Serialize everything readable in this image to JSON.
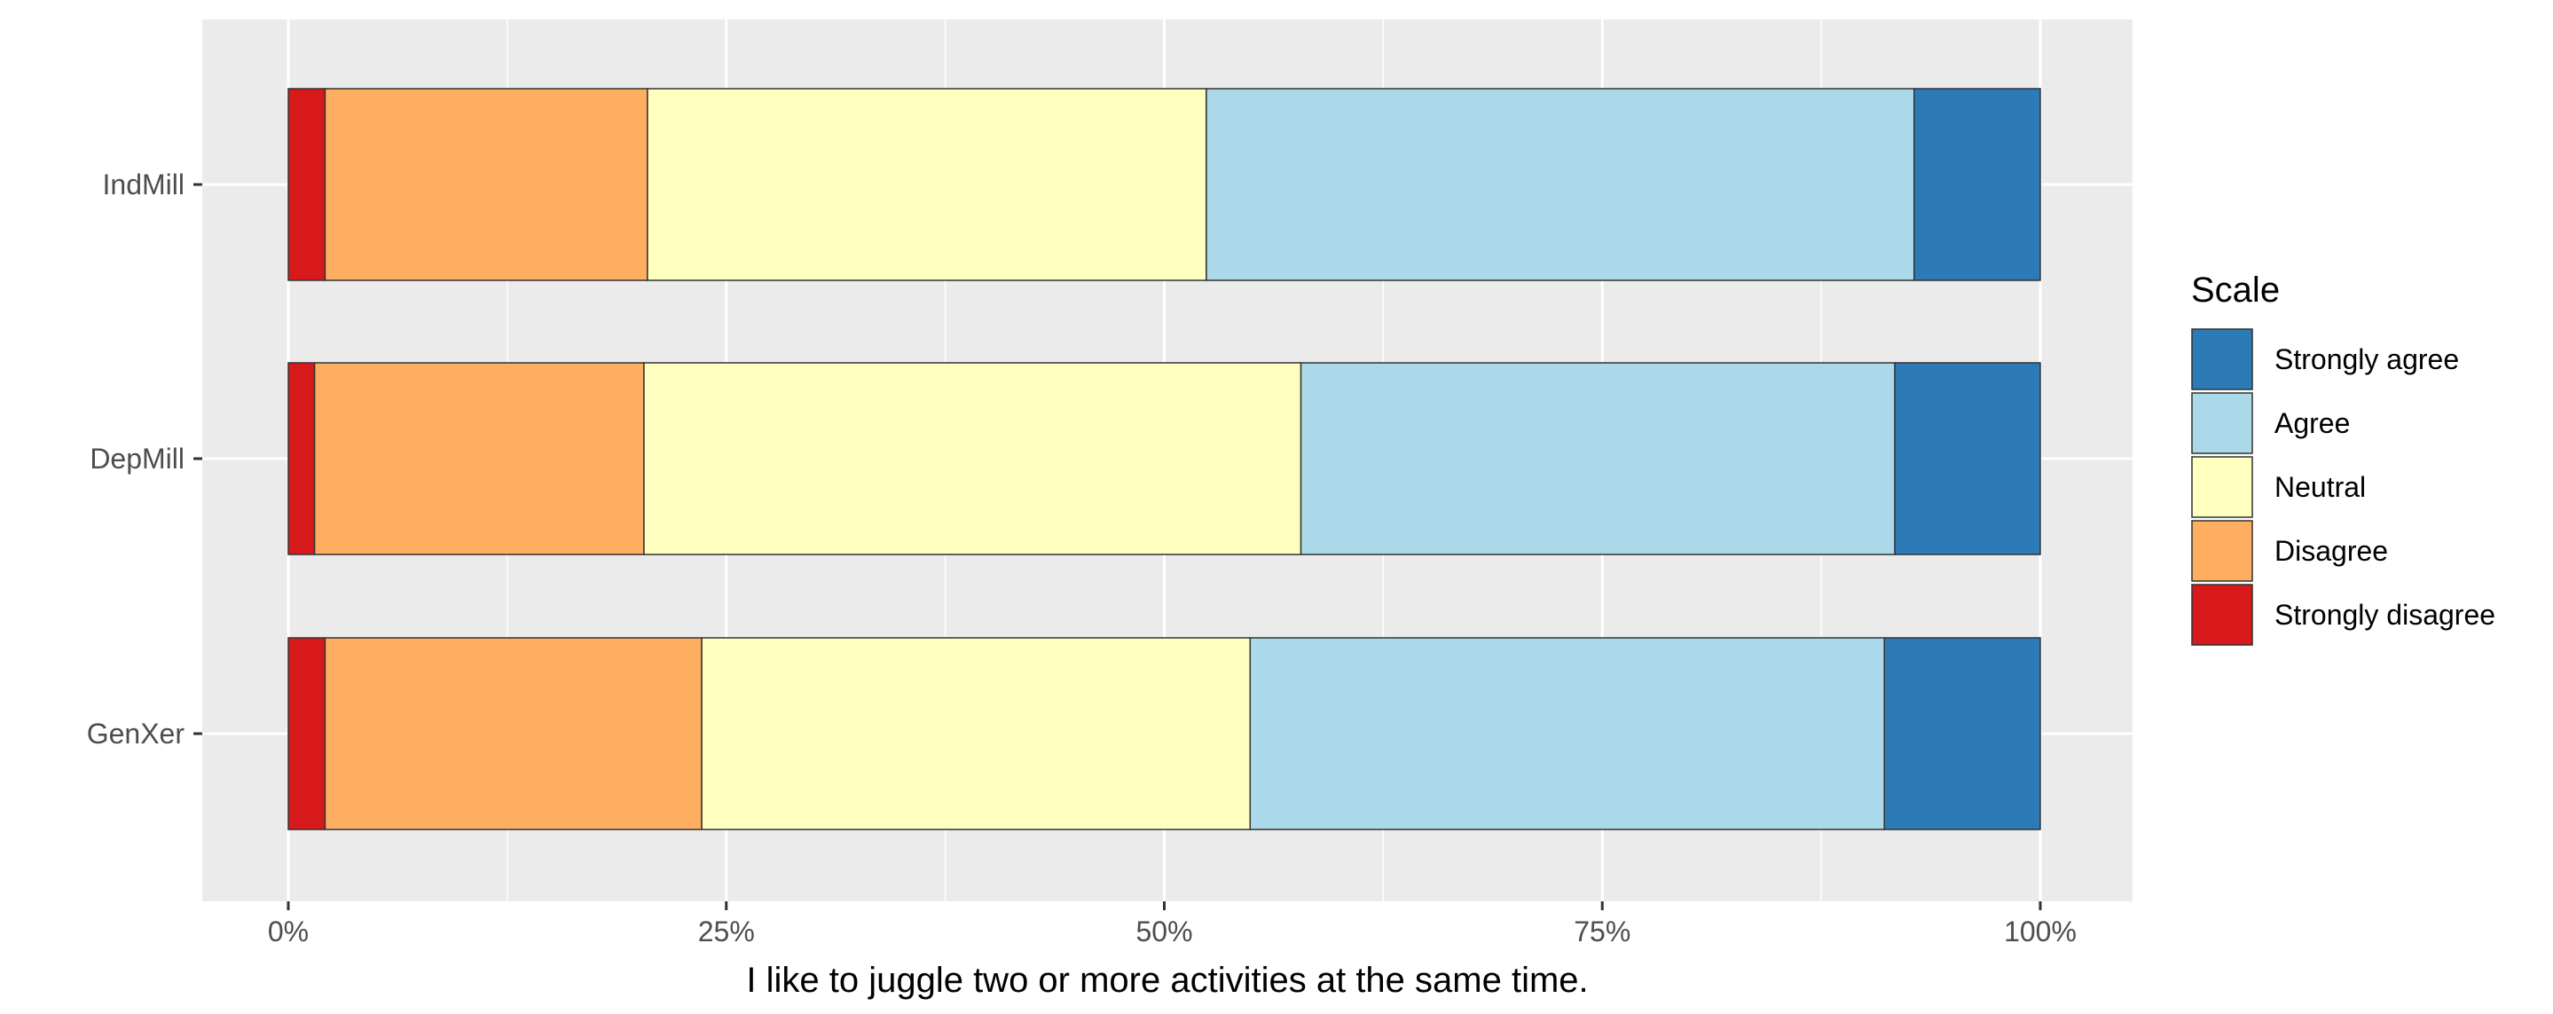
{
  "chart_data": {
    "type": "bar",
    "orientation": "horizontal",
    "stacked": "percent",
    "xlabel": "I like to juggle two or more activities at the same time.",
    "ylabel": "",
    "xlim": [
      0,
      1
    ],
    "x_ticks": [
      0,
      0.25,
      0.5,
      0.75,
      1
    ],
    "x_tick_labels": [
      "0%",
      "25%",
      "50%",
      "75%",
      "100%"
    ],
    "grid": true,
    "legend_placement": "right",
    "legend": {
      "title": "Scale",
      "items": [
        "Strongly agree",
        "Agree",
        "Neutral",
        "Disagree",
        "Strongly disagree"
      ]
    },
    "categories": [
      "IndMill",
      "DepMill",
      "GenXer"
    ],
    "series": [
      {
        "name": "Strongly disagree",
        "color": "#d7191c",
        "values": [
          0.021,
          0.015,
          0.021
        ]
      },
      {
        "name": "Disagree",
        "color": "#fdae61",
        "values": [
          0.184,
          0.188,
          0.215
        ]
      },
      {
        "name": "Neutral",
        "color": "#ffffbf",
        "values": [
          0.319,
          0.375,
          0.313
        ]
      },
      {
        "name": "Agree",
        "color": "#abd9e9",
        "values": [
          0.404,
          0.339,
          0.362
        ]
      },
      {
        "name": "Strongly agree",
        "color": "#2c7bb6",
        "values": [
          0.072,
          0.083,
          0.089
        ]
      }
    ]
  }
}
